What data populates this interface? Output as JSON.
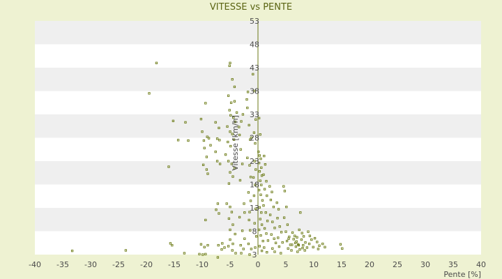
{
  "chart_data": {
    "type": "scatter",
    "title": "VITESSE vs PENTE",
    "xlabel": "Pente [%]",
    "ylabel": "Vitesse [km/h]",
    "xlim": [
      -40,
      40
    ],
    "ylim": [
      3,
      53
    ],
    "xticks": [
      -40,
      -35,
      -30,
      -25,
      -20,
      -15,
      -10,
      -5,
      0,
      5,
      10,
      15,
      20,
      25,
      30,
      35,
      40
    ],
    "yticks": [
      3,
      8,
      13,
      18,
      23,
      28,
      33,
      38,
      43,
      48,
      53
    ],
    "grid": "horizontal bands",
    "legend": "none",
    "colors": {
      "background": "#eef2d2",
      "band_light": "#ffffff",
      "band_dark": "#efefef",
      "point": "#6b7a14",
      "zero_line": "#6b7a14",
      "title": "#5a6412"
    },
    "series": [
      {
        "points": [
          [
            -33.3,
            3.8
          ],
          [
            -23.7,
            3.9
          ],
          [
            -18.2,
            44.0
          ],
          [
            -19.5,
            37.5
          ],
          [
            -15.2,
            31.6
          ],
          [
            -14.3,
            27.5
          ],
          [
            -13.0,
            31.3
          ],
          [
            -12.5,
            27.4
          ],
          [
            -16.0,
            21.8
          ],
          [
            -15.7,
            5.4
          ],
          [
            -15.4,
            5.0
          ],
          [
            -13.2,
            3.3
          ],
          [
            -10.2,
            32.0
          ],
          [
            -10.0,
            29.3
          ],
          [
            -9.4,
            35.4
          ],
          [
            -9.7,
            27.4
          ],
          [
            -9.6,
            25.8
          ],
          [
            -9.1,
            28.2
          ],
          [
            -9.2,
            23.9
          ],
          [
            -9.8,
            22.2
          ],
          [
            -9.2,
            21.2
          ],
          [
            -9.0,
            20.3
          ],
          [
            -8.8,
            27.9
          ],
          [
            -8.5,
            26.4
          ],
          [
            -9.4,
            10.4
          ],
          [
            -10.2,
            5.2
          ],
          [
            -9.6,
            4.6
          ],
          [
            -9.0,
            5.0
          ],
          [
            -10.5,
            3.1
          ],
          [
            -9.9,
            3.0
          ],
          [
            -9.4,
            3.1
          ],
          [
            -7.6,
            31.3
          ],
          [
            -7.0,
            30.1
          ],
          [
            -7.3,
            27.8
          ],
          [
            -6.9,
            27.5
          ],
          [
            -7.6,
            25.0
          ],
          [
            -7.3,
            23.0
          ],
          [
            -6.8,
            22.4
          ],
          [
            -7.2,
            13.9
          ],
          [
            -7.5,
            12.6
          ],
          [
            -7.0,
            11.8
          ],
          [
            -7.1,
            5.0
          ],
          [
            -6.4,
            5.4
          ],
          [
            -6.0,
            4.5
          ],
          [
            -7.2,
            2.4
          ],
          [
            -6.5,
            4.1
          ],
          [
            -5.1,
            43.4
          ],
          [
            -5.0,
            44.0
          ],
          [
            -4.6,
            40.5
          ],
          [
            -4.2,
            38.9
          ],
          [
            -5.3,
            37.0
          ],
          [
            -4.8,
            35.5
          ],
          [
            -4.2,
            35.8
          ],
          [
            -3.8,
            33.4
          ],
          [
            -5.1,
            33.9
          ],
          [
            -4.9,
            32.8
          ],
          [
            -4.4,
            32.3
          ],
          [
            -4.1,
            31.4
          ],
          [
            -5.5,
            30.4
          ],
          [
            -5.0,
            29.3
          ],
          [
            -4.6,
            28.8
          ],
          [
            -4.3,
            27.6
          ],
          [
            -5.4,
            27.1
          ],
          [
            -4.9,
            26.2
          ],
          [
            -5.8,
            24.4
          ],
          [
            -5.3,
            23.0
          ],
          [
            -4.7,
            22.4
          ],
          [
            -4.2,
            21.5
          ],
          [
            -5.0,
            20.6
          ],
          [
            -4.5,
            19.7
          ],
          [
            -5.2,
            18.2
          ],
          [
            -5.6,
            13.9
          ],
          [
            -5.0,
            13.2
          ],
          [
            -4.7,
            12.1
          ],
          [
            -5.2,
            10.7
          ],
          [
            -4.5,
            9.4
          ],
          [
            -5.0,
            8.3
          ],
          [
            -4.1,
            7.4
          ],
          [
            -5.0,
            6.2
          ],
          [
            -4.5,
            5.3
          ],
          [
            -5.3,
            4.8
          ],
          [
            -4.6,
            3.9
          ],
          [
            -4.0,
            3.3
          ],
          [
            -3.4,
            30.3
          ],
          [
            -3.0,
            31.5
          ],
          [
            -2.7,
            33.0
          ],
          [
            -3.3,
            28.6
          ],
          [
            -3.1,
            25.5
          ],
          [
            -2.8,
            22.4
          ],
          [
            -3.2,
            18.9
          ],
          [
            -2.5,
            13.9
          ],
          [
            -2.4,
            12.0
          ],
          [
            -3.3,
            11.0
          ],
          [
            -2.8,
            8.1
          ],
          [
            -3.1,
            5.0
          ],
          [
            -2.6,
            4.2
          ],
          [
            -3.0,
            3.3
          ],
          [
            -2.4,
            6.4
          ],
          [
            -2.0,
            36.2
          ],
          [
            -1.8,
            37.8
          ],
          [
            -1.9,
            34.4
          ],
          [
            -1.6,
            30.7
          ],
          [
            -1.4,
            27.6
          ],
          [
            -1.2,
            28.0
          ],
          [
            -1.9,
            23.7
          ],
          [
            -1.5,
            22.1
          ],
          [
            -1.3,
            19.6
          ],
          [
            -1.7,
            16.3
          ],
          [
            -1.3,
            14.5
          ],
          [
            -1.5,
            12.1
          ],
          [
            -1.6,
            10.4
          ],
          [
            -1.4,
            8.2
          ],
          [
            -1.7,
            5.3
          ],
          [
            -1.2,
            4.2
          ],
          [
            -1.5,
            3.0
          ],
          [
            -0.6,
            38.0
          ],
          [
            -0.9,
            41.6
          ],
          [
            -0.4,
            31.9
          ],
          [
            -0.7,
            29.1
          ],
          [
            -0.5,
            26.8
          ],
          [
            -0.6,
            23.0
          ],
          [
            -0.4,
            21.2
          ],
          [
            -0.8,
            19.5
          ],
          [
            -0.5,
            17.9
          ],
          [
            -0.7,
            15.6
          ],
          [
            -0.4,
            12.8
          ],
          [
            -0.6,
            9.7
          ],
          [
            -0.3,
            6.9
          ],
          [
            -0.5,
            4.5
          ],
          [
            0.2,
            32.2
          ],
          [
            0.4,
            28.7
          ],
          [
            0.1,
            25.0
          ],
          [
            0.3,
            24.2
          ],
          [
            0.5,
            23.5
          ],
          [
            0.2,
            22.6
          ],
          [
            0.6,
            21.6
          ],
          [
            0.3,
            20.8
          ],
          [
            0.7,
            19.9
          ],
          [
            0.4,
            18.8
          ],
          [
            0.6,
            17.9
          ],
          [
            0.2,
            16.8
          ],
          [
            0.5,
            15.8
          ],
          [
            0.8,
            14.6
          ],
          [
            0.3,
            13.1
          ],
          [
            0.6,
            12.0
          ],
          [
            0.4,
            10.6
          ],
          [
            0.7,
            9.4
          ],
          [
            0.2,
            8.3
          ],
          [
            0.5,
            7.1
          ],
          [
            0.9,
            5.9
          ],
          [
            0.3,
            4.8
          ],
          [
            0.7,
            3.8
          ],
          [
            1.1,
            24.1
          ],
          [
            1.3,
            22.3
          ],
          [
            1.0,
            20.1
          ],
          [
            1.5,
            18.7
          ],
          [
            1.2,
            17.0
          ],
          [
            1.6,
            15.6
          ],
          [
            1.0,
            13.5
          ],
          [
            1.4,
            12.0
          ],
          [
            1.7,
            10.2
          ],
          [
            1.2,
            8.6
          ],
          [
            1.5,
            7.5
          ],
          [
            1.8,
            6.0
          ],
          [
            1.1,
            4.5
          ],
          [
            1.6,
            3.5
          ],
          [
            2.1,
            17.6
          ],
          [
            2.5,
            16.4
          ],
          [
            2.3,
            14.7
          ],
          [
            2.8,
            13.2
          ],
          [
            2.2,
            11.5
          ],
          [
            2.6,
            10.0
          ],
          [
            3.0,
            8.7
          ],
          [
            2.4,
            7.3
          ],
          [
            2.9,
            6.4
          ],
          [
            3.2,
            5.5
          ],
          [
            2.6,
            4.3
          ],
          [
            3.0,
            3.6
          ],
          [
            3.4,
            14.1
          ],
          [
            3.7,
            12.7
          ],
          [
            3.5,
            10.8
          ],
          [
            3.9,
            9.0
          ],
          [
            4.2,
            7.8
          ],
          [
            3.6,
            6.6
          ],
          [
            4.4,
            5.6
          ],
          [
            3.8,
            4.7
          ],
          [
            4.1,
            3.3
          ],
          [
            4.6,
            17.6
          ],
          [
            4.8,
            16.6
          ],
          [
            5.1,
            13.2
          ],
          [
            4.7,
            10.9
          ],
          [
            5.3,
            9.4
          ],
          [
            5.0,
            7.9
          ],
          [
            5.6,
            6.8
          ],
          [
            5.2,
            5.9
          ],
          [
            5.8,
            5.1
          ],
          [
            5.4,
            4.3
          ],
          [
            6.0,
            3.9
          ],
          [
            6.2,
            7.7
          ],
          [
            6.6,
            7.0
          ],
          [
            6.4,
            6.3
          ],
          [
            6.9,
            5.8
          ],
          [
            7.2,
            5.2
          ],
          [
            6.8,
            4.7
          ],
          [
            7.5,
            4.1
          ],
          [
            7.1,
            3.6
          ],
          [
            7.6,
            12.0
          ],
          [
            7.4,
            8.3
          ],
          [
            7.9,
            7.6
          ],
          [
            8.2,
            6.9
          ],
          [
            7.8,
            6.2
          ],
          [
            8.5,
            5.6
          ],
          [
            8.1,
            5.0
          ],
          [
            8.8,
            4.5
          ],
          [
            8.4,
            3.9
          ],
          [
            9.0,
            7.9
          ],
          [
            9.3,
            7.0
          ],
          [
            9.6,
            6.2
          ],
          [
            9.2,
            5.3
          ],
          [
            9.9,
            4.6
          ],
          [
            10.2,
            6.5
          ],
          [
            10.6,
            5.7
          ],
          [
            11.0,
            4.9
          ],
          [
            10.8,
            4.2
          ],
          [
            11.6,
            5.3
          ],
          [
            12.0,
            4.6
          ],
          [
            14.8,
            5.2
          ],
          [
            15.1,
            4.3
          ],
          [
            6.7,
            5.5
          ],
          [
            7.3,
            5.0
          ],
          [
            8.0,
            4.4
          ],
          [
            6.1,
            5.1
          ],
          [
            5.5,
            6.4
          ],
          [
            7.0,
            6.7
          ]
        ]
      }
    ]
  }
}
